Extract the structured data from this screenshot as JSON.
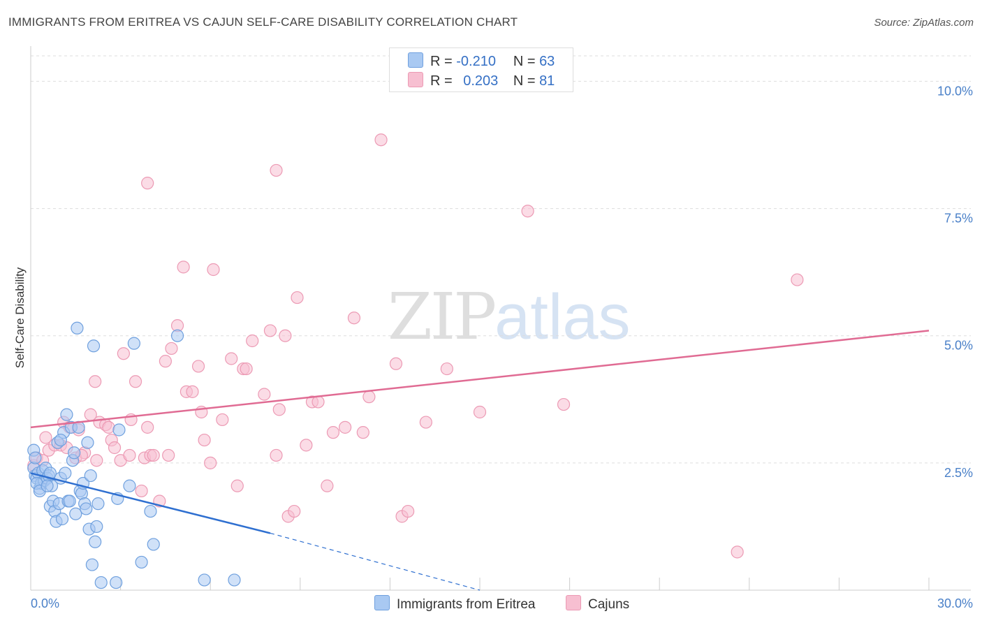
{
  "title": "IMMIGRANTS FROM ERITREA VS CAJUN SELF-CARE DISABILITY CORRELATION CHART",
  "source": "Source: ZipAtlas.com",
  "watermark": {
    "zip": "ZIP",
    "atlas": "atlas"
  },
  "legend": {
    "r_label": "R =",
    "n_label": "N =",
    "rows": [
      {
        "r": "-0.210",
        "n": "63"
      },
      {
        "r": "0.203",
        "n": "81"
      }
    ]
  },
  "colors": {
    "eritrea_fill": "#a9c9f2",
    "eritrea_stroke": "#6fa0de",
    "eritrea_line": "#2e6fd0",
    "cajun_fill": "#f7bfd1",
    "cajun_stroke": "#ec9ab4",
    "cajun_line": "#e06b93",
    "axis_tick": "#4a80c8",
    "grid": "#dddddd"
  },
  "chart_data": {
    "type": "scatter",
    "title": "IMMIGRANTS FROM ERITREA VS CAJUN SELF-CARE DISABILITY CORRELATION CHART",
    "xlabel": "",
    "ylabel": "Self-Care Disability",
    "xlim": [
      0,
      30
    ],
    "ylim": [
      0,
      10.5
    ],
    "x_tick_labels": [
      "0.0%",
      "30.0%"
    ],
    "y_ticks": [
      2.5,
      5.0,
      7.5,
      10.0
    ],
    "y_tick_labels": [
      "2.5%",
      "5.0%",
      "7.5%",
      "10.0%"
    ],
    "grid": true,
    "legend_position": "top-center",
    "series": [
      {
        "name": "Immigrants from Eritrea",
        "trend": {
          "x": [
            0,
            8.0
          ],
          "y": [
            2.3,
            1.12
          ],
          "dashed_to": [
            15.0,
            0.0
          ]
        },
        "points": [
          [
            0.1,
            2.75
          ],
          [
            0.1,
            2.4
          ],
          [
            0.15,
            2.25
          ],
          [
            0.2,
            2.2
          ],
          [
            0.25,
            2.3
          ],
          [
            0.3,
            2.0
          ],
          [
            0.35,
            2.1
          ],
          [
            0.4,
            2.35
          ],
          [
            0.45,
            2.15
          ],
          [
            0.5,
            2.4
          ],
          [
            0.55,
            2.2
          ],
          [
            0.6,
            2.25
          ],
          [
            0.65,
            1.65
          ],
          [
            0.7,
            2.05
          ],
          [
            0.75,
            1.75
          ],
          [
            0.8,
            1.55
          ],
          [
            0.85,
            1.35
          ],
          [
            0.9,
            2.9
          ],
          [
            0.95,
            1.7
          ],
          [
            1.0,
            2.2
          ],
          [
            1.05,
            1.4
          ],
          [
            1.1,
            3.1
          ],
          [
            1.15,
            2.3
          ],
          [
            1.2,
            3.45
          ],
          [
            1.25,
            1.75
          ],
          [
            1.3,
            1.75
          ],
          [
            1.35,
            3.2
          ],
          [
            1.4,
            2.55
          ],
          [
            1.45,
            2.7
          ],
          [
            1.5,
            1.5
          ],
          [
            1.55,
            5.15
          ],
          [
            1.6,
            3.2
          ],
          [
            1.65,
            1.95
          ],
          [
            1.7,
            1.9
          ],
          [
            1.75,
            2.1
          ],
          [
            1.8,
            1.7
          ],
          [
            1.85,
            1.6
          ],
          [
            1.9,
            2.9
          ],
          [
            1.95,
            1.2
          ],
          [
            2.0,
            2.25
          ],
          [
            2.05,
            0.5
          ],
          [
            2.1,
            4.8
          ],
          [
            2.15,
            0.95
          ],
          [
            2.2,
            1.25
          ],
          [
            2.25,
            1.7
          ],
          [
            2.35,
            0.15
          ],
          [
            2.85,
            0.15
          ],
          [
            2.9,
            1.8
          ],
          [
            2.95,
            3.15
          ],
          [
            3.3,
            2.05
          ],
          [
            3.45,
            4.85
          ],
          [
            3.7,
            0.55
          ],
          [
            4.0,
            1.55
          ],
          [
            4.1,
            0.9
          ],
          [
            4.9,
            5.0
          ],
          [
            5.8,
            0.2
          ],
          [
            6.8,
            0.2
          ],
          [
            0.15,
            2.6
          ],
          [
            0.2,
            2.1
          ],
          [
            0.3,
            1.95
          ],
          [
            0.55,
            2.05
          ],
          [
            0.65,
            2.3
          ],
          [
            1.0,
            2.95
          ]
        ]
      },
      {
        "name": "Cajuns",
        "trend": {
          "x": [
            0,
            30
          ],
          "y": [
            3.2,
            5.1
          ]
        },
        "points": [
          [
            0.1,
            2.45
          ],
          [
            0.2,
            2.6
          ],
          [
            0.4,
            2.55
          ],
          [
            0.6,
            2.75
          ],
          [
            0.8,
            2.85
          ],
          [
            1.0,
            2.85
          ],
          [
            1.1,
            3.3
          ],
          [
            1.3,
            3.2
          ],
          [
            1.5,
            2.6
          ],
          [
            1.6,
            3.15
          ],
          [
            1.8,
            2.7
          ],
          [
            2.0,
            3.45
          ],
          [
            2.15,
            4.1
          ],
          [
            2.2,
            2.55
          ],
          [
            2.3,
            3.3
          ],
          [
            2.5,
            3.25
          ],
          [
            2.6,
            3.2
          ],
          [
            2.7,
            2.95
          ],
          [
            2.8,
            2.8
          ],
          [
            3.0,
            2.55
          ],
          [
            3.1,
            4.65
          ],
          [
            3.3,
            2.65
          ],
          [
            3.35,
            3.35
          ],
          [
            3.5,
            4.1
          ],
          [
            3.7,
            1.95
          ],
          [
            3.8,
            2.6
          ],
          [
            3.9,
            3.2
          ],
          [
            4.0,
            2.65
          ],
          [
            4.1,
            2.65
          ],
          [
            4.3,
            1.75
          ],
          [
            4.5,
            4.5
          ],
          [
            4.6,
            2.65
          ],
          [
            4.7,
            4.75
          ],
          [
            4.9,
            5.2
          ],
          [
            5.1,
            6.35
          ],
          [
            5.2,
            3.9
          ],
          [
            5.4,
            3.9
          ],
          [
            5.6,
            4.4
          ],
          [
            5.7,
            3.5
          ],
          [
            5.8,
            2.95
          ],
          [
            6.0,
            2.5
          ],
          [
            6.1,
            6.3
          ],
          [
            6.4,
            3.35
          ],
          [
            6.7,
            4.55
          ],
          [
            6.9,
            2.05
          ],
          [
            7.1,
            4.35
          ],
          [
            7.2,
            4.35
          ],
          [
            7.4,
            4.9
          ],
          [
            7.8,
            3.85
          ],
          [
            8.0,
            5.1
          ],
          [
            8.2,
            2.65
          ],
          [
            8.3,
            3.55
          ],
          [
            8.5,
            5.0
          ],
          [
            8.6,
            1.45
          ],
          [
            8.8,
            1.55
          ],
          [
            8.9,
            5.75
          ],
          [
            9.2,
            2.85
          ],
          [
            9.4,
            3.7
          ],
          [
            9.6,
            3.7
          ],
          [
            9.9,
            2.05
          ],
          [
            10.1,
            3.1
          ],
          [
            10.5,
            3.2
          ],
          [
            10.8,
            5.35
          ],
          [
            11.1,
            3.1
          ],
          [
            11.3,
            3.8
          ],
          [
            11.7,
            8.85
          ],
          [
            12.2,
            4.45
          ],
          [
            12.4,
            1.45
          ],
          [
            12.6,
            1.55
          ],
          [
            13.2,
            3.3
          ],
          [
            13.9,
            4.35
          ],
          [
            15.0,
            3.5
          ],
          [
            16.6,
            7.45
          ],
          [
            17.8,
            3.65
          ],
          [
            23.6,
            0.75
          ],
          [
            25.6,
            6.1
          ],
          [
            3.9,
            8.0
          ],
          [
            8.2,
            8.25
          ],
          [
            0.5,
            3.0
          ],
          [
            1.2,
            2.8
          ],
          [
            1.7,
            2.65
          ]
        ]
      }
    ]
  },
  "bottom_legend": [
    "Immigrants from Eritrea",
    "Cajuns"
  ]
}
